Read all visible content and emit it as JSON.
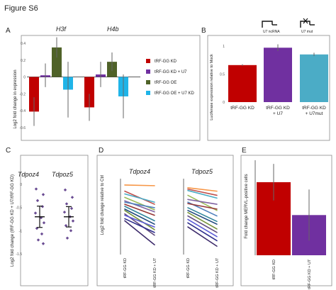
{
  "figure_title": "Figure S6",
  "panel_letters": {
    "A": "A",
    "B": "B",
    "C": "C",
    "D": "D",
    "E": "E"
  },
  "colors": {
    "kd": "#c00000",
    "kd_u7": "#7030a0",
    "oe": "#4f6228",
    "oe_u7": "#1fb4e8",
    "blue_light": "#4bacc6",
    "point": "#6a4c93",
    "error": "#666666"
  },
  "chart_data": [
    {
      "panel": "A",
      "type": "bar",
      "ylabel": "Log2 fold change in expression",
      "ylim": [
        -0.6,
        0.45
      ],
      "yticks": [
        -0.6,
        -0.4,
        -0.2,
        0,
        0.2,
        0.4
      ],
      "ytick_labels": [
        "-0.6",
        "-0.4",
        "-0.2",
        "0",
        "0.2",
        "0.4"
      ],
      "grid": false,
      "legend_position": "right",
      "categories": [
        "H3f",
        "H4b"
      ],
      "series": [
        {
          "name": "tRF-GG KD",
          "color": "#c00000",
          "values": [
            -0.41,
            -0.36
          ],
          "err": [
            0.17,
            0.16
          ]
        },
        {
          "name": "tRF-GG KD + U7",
          "color": "#7030a0",
          "values": [
            0.02,
            0.03
          ],
          "err": [
            0.14,
            0.15
          ]
        },
        {
          "name": "tRF-GG OE",
          "color": "#4f6228",
          "values": [
            0.35,
            0.18
          ],
          "err": [
            0.12,
            0.11
          ]
        },
        {
          "name": "tRF-GG OE + U7 KD",
          "color": "#1fb4e8",
          "values": [
            -0.15,
            -0.23
          ],
          "err": [
            0.33,
            0.26
          ]
        }
      ]
    },
    {
      "panel": "B",
      "type": "bar",
      "ylabel": "Luciferase expression relative to Mock",
      "ylim": [
        0,
        1.1
      ],
      "yticks": [
        0,
        0.5,
        1
      ],
      "ytick_labels": [
        "0",
        "0.5",
        "1"
      ],
      "grid": false,
      "categories": [
        "tRF-GG KD",
        "tRF-GG KD + U7",
        "tRF-GG KD + U7mut"
      ],
      "category_lines": [
        [
          "tRF-GG KD"
        ],
        [
          "tRF-GG KD",
          "+ U7"
        ],
        [
          "tRF-GG KD",
          "+ U7mut"
        ]
      ],
      "values": [
        0.66,
        0.97,
        0.85
      ],
      "err": [
        0.015,
        0.06,
        0.03
      ],
      "colors": [
        "#c00000",
        "#7030a0",
        "#4bacc6"
      ],
      "icon_labels": [
        "U7 ncRNA",
        "U7 mut"
      ]
    },
    {
      "panel": "C",
      "type": "scatter",
      "ylabel": "Log2 fold change (tRF-GG KD + U7/tRF-GG KD)",
      "ylim": [
        -1.5,
        0
      ],
      "yticks": [
        0,
        -0.5,
        -1,
        -1.5
      ],
      "ytick_labels": [
        "0",
        "-0.5",
        "-1",
        "-1.5"
      ],
      "grid": false,
      "categories": [
        "Tdpoz4",
        "Tdpoz5"
      ],
      "points": [
        [
          -0.1,
          -0.22,
          -0.35,
          -0.48,
          -0.62,
          -0.72,
          -0.83,
          -0.95,
          -1.07,
          -1.2,
          -1.28
        ],
        [
          -0.12,
          -0.28,
          -0.42,
          -0.52,
          -0.6,
          -0.7,
          -0.79,
          -0.89,
          -1.0,
          -1.16
        ]
      ],
      "mean": [
        -0.7,
        -0.7
      ],
      "err": [
        0.23,
        0.22
      ]
    },
    {
      "panel": "D",
      "type": "line",
      "ylabel": "Log2 fold change relative to Ctrl",
      "categories": [
        "tRF-GG KD",
        "tRF-GG KD + U7"
      ],
      "grid": false,
      "panels": [
        {
          "title": "Tdpoz4",
          "lines": [
            {
              "color": "#f79646",
              "values": [
                0.97,
                0.96
              ]
            },
            {
              "color": "#c0504d",
              "values": [
                0.88,
                0.69
              ]
            },
            {
              "color": "#4bacc6",
              "values": [
                0.84,
                0.72
              ]
            },
            {
              "color": "#9bbb59",
              "values": [
                0.79,
                0.61
              ]
            },
            {
              "color": "#8064a2",
              "values": [
                0.74,
                0.58
              ]
            },
            {
              "color": "#4f81bd",
              "values": [
                0.72,
                0.64
              ]
            },
            {
              "color": "#953735",
              "values": [
                0.69,
                0.53
              ]
            },
            {
              "color": "#31859c",
              "values": [
                0.66,
                0.45
              ]
            },
            {
              "color": "#1f497d",
              "values": [
                0.62,
                0.4
              ]
            },
            {
              "color": "#77933c",
              "values": [
                0.6,
                0.32
              ]
            },
            {
              "color": "#604a7b",
              "values": [
                0.55,
                0.24
              ]
            },
            {
              "color": "#5b5bd6",
              "values": [
                0.53,
                0.36
              ]
            },
            {
              "color": "#2e2e8c",
              "values": [
                0.48,
                0.28
              ]
            },
            {
              "color": "#3d2b6b",
              "values": [
                0.45,
                0.1
              ]
            }
          ]
        },
        {
          "title": "Tdpoz5",
          "lines": [
            {
              "color": "#f79646",
              "values": [
                0.93,
                0.88
              ]
            },
            {
              "color": "#c0504d",
              "values": [
                0.91,
                0.82
              ]
            },
            {
              "color": "#4bacc6",
              "values": [
                0.89,
                0.78
              ]
            },
            {
              "color": "#9bbb59",
              "values": [
                0.82,
                0.6
              ]
            },
            {
              "color": "#8064a2",
              "values": [
                0.76,
                0.69
              ]
            },
            {
              "color": "#4f81bd",
              "values": [
                0.72,
                0.52
              ]
            },
            {
              "color": "#953735",
              "values": [
                0.7,
                0.62
              ]
            },
            {
              "color": "#31859c",
              "values": [
                0.64,
                0.44
              ]
            },
            {
              "color": "#1f497d",
              "values": [
                0.6,
                0.4
              ]
            },
            {
              "color": "#77933c",
              "values": [
                0.57,
                0.33
              ]
            },
            {
              "color": "#604a7b",
              "values": [
                0.52,
                0.28
              ]
            },
            {
              "color": "#5b5bd6",
              "values": [
                0.47,
                0.22
              ]
            },
            {
              "color": "#2e2e8c",
              "values": [
                0.42,
                0.16
              ]
            },
            {
              "color": "#3d2b6b",
              "values": [
                0.36,
                0.08
              ]
            }
          ]
        }
      ]
    },
    {
      "panel": "E",
      "type": "bar",
      "ylabel": "Fold change MERVL-positive cells",
      "ylim": [
        0,
        1.3
      ],
      "grid": false,
      "categories": [
        "tRF-GG KD",
        "tRF-GG KD + U7"
      ],
      "values": [
        1.0,
        0.55
      ],
      "err": [
        0.25,
        0.35
      ],
      "colors": [
        "#c00000",
        "#7030a0"
      ]
    }
  ]
}
